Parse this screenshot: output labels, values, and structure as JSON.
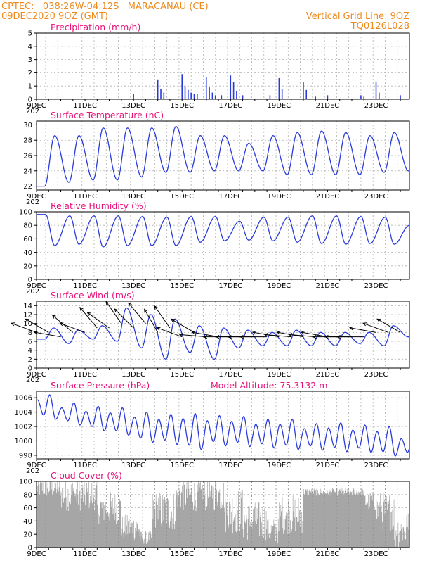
{
  "header": {
    "line1_left": "CPTEC:   038:26W-04:12S   MARACANAU (CE)",
    "line2_left": "09DEC2020 9OZ (GMT)",
    "line1_right": "Vertical Grid Line: 9OZ",
    "line2_right": "TQ0126L028"
  },
  "colors": {
    "header": "#ee8a1e",
    "title": "#e6137a",
    "series": "#2a3bdc",
    "cloud": "#a6a6a6",
    "arrow": "#000000",
    "grid": "#b0b0b0"
  },
  "x_axis": {
    "tick_labels": [
      "9DEC",
      "11DEC",
      "13DEC",
      "15DEC",
      "17DEC",
      "19DEC",
      "21DEC",
      "23DEC"
    ],
    "truncated_year_label": "202"
  },
  "chart_data": [
    {
      "id": "precipitation",
      "type": "bar",
      "title": "Precipitation (mm/h)",
      "ylim": [
        0,
        5
      ],
      "yticks": [
        0,
        1,
        2,
        3,
        4,
        5
      ],
      "grid": true,
      "x_start": "2020-12-09T00Z",
      "x_end": "2020-12-24T09Z",
      "events": [
        {
          "t": "2020-12-13T00Z",
          "v": 0.4
        },
        {
          "t": "2020-12-14T00Z",
          "v": 1.5
        },
        {
          "t": "2020-12-14T03Z",
          "v": 0.8
        },
        {
          "t": "2020-12-14T06Z",
          "v": 0.5
        },
        {
          "t": "2020-12-15T00Z",
          "v": 1.9
        },
        {
          "t": "2020-12-15T03Z",
          "v": 1.0
        },
        {
          "t": "2020-12-15T06Z",
          "v": 0.7
        },
        {
          "t": "2020-12-15T09Z",
          "v": 0.5
        },
        {
          "t": "2020-12-15T12Z",
          "v": 0.4
        },
        {
          "t": "2020-12-15T15Z",
          "v": 0.4
        },
        {
          "t": "2020-12-16T00Z",
          "v": 1.7
        },
        {
          "t": "2020-12-16T03Z",
          "v": 0.9
        },
        {
          "t": "2020-12-16T06Z",
          "v": 0.5
        },
        {
          "t": "2020-12-16T09Z",
          "v": 0.3
        },
        {
          "t": "2020-12-16T15Z",
          "v": 0.3
        },
        {
          "t": "2020-12-17T00Z",
          "v": 1.8
        },
        {
          "t": "2020-12-17T03Z",
          "v": 1.3
        },
        {
          "t": "2020-12-17T06Z",
          "v": 0.6
        },
        {
          "t": "2020-12-17T12Z",
          "v": 0.3
        },
        {
          "t": "2020-12-18T15Z",
          "v": 0.3
        },
        {
          "t": "2020-12-19T00Z",
          "v": 1.6
        },
        {
          "t": "2020-12-19T03Z",
          "v": 0.8
        },
        {
          "t": "2020-12-20T00Z",
          "v": 1.3
        },
        {
          "t": "2020-12-20T03Z",
          "v": 0.7
        },
        {
          "t": "2020-12-20T12Z",
          "v": 0.2
        },
        {
          "t": "2020-12-21T00Z",
          "v": 0.3
        },
        {
          "t": "2020-12-22T09Z",
          "v": 0.3
        },
        {
          "t": "2020-12-22T12Z",
          "v": 0.2
        },
        {
          "t": "2020-12-23T00Z",
          "v": 1.3
        },
        {
          "t": "2020-12-23T03Z",
          "v": 0.5
        },
        {
          "t": "2020-12-24T00Z",
          "v": 0.3
        }
      ]
    },
    {
      "id": "temperature",
      "type": "line",
      "title": "Surface Temperature (nC)",
      "ylim": [
        21.5,
        30.5
      ],
      "yticks": [
        22,
        24,
        26,
        28,
        30
      ],
      "grid": true,
      "x_start": "2020-12-09T00Z",
      "x_end": "2020-12-24T09Z",
      "daily": [
        {
          "day": "2020-12-09",
          "min": 22.0,
          "max": 28.6
        },
        {
          "day": "2020-12-10",
          "min": 22.5,
          "max": 28.6
        },
        {
          "day": "2020-12-11",
          "min": 22.8,
          "max": 29.6
        },
        {
          "day": "2020-12-12",
          "min": 22.8,
          "max": 29.6
        },
        {
          "day": "2020-12-13",
          "min": 23.2,
          "max": 29.6
        },
        {
          "day": "2020-12-14",
          "min": 23.8,
          "max": 29.8
        },
        {
          "day": "2020-12-15",
          "min": 23.8,
          "max": 28.6
        },
        {
          "day": "2020-12-16",
          "min": 24.0,
          "max": 28.6
        },
        {
          "day": "2020-12-17",
          "min": 24.0,
          "max": 27.6
        },
        {
          "day": "2020-12-18",
          "min": 24.0,
          "max": 28.6
        },
        {
          "day": "2020-12-19",
          "min": 23.5,
          "max": 29.0
        },
        {
          "day": "2020-12-20",
          "min": 23.5,
          "max": 29.2
        },
        {
          "day": "2020-12-21",
          "min": 23.5,
          "max": 29.0
        },
        {
          "day": "2020-12-22",
          "min": 23.5,
          "max": 28.6
        },
        {
          "day": "2020-12-23",
          "min": 23.8,
          "max": 29.0
        },
        {
          "day": "2020-12-24",
          "min": 24.0,
          "max": 25.6
        }
      ]
    },
    {
      "id": "humidity",
      "type": "line",
      "title": "Relative Humidity (%)",
      "ylim": [
        0,
        100
      ],
      "yticks": [
        0,
        20,
        40,
        60,
        80,
        100
      ],
      "grid": true,
      "x_start": "2020-12-09T00Z",
      "x_end": "2020-12-24T09Z",
      "daily": [
        {
          "day": "2020-12-09",
          "min": 50,
          "max": 96
        },
        {
          "day": "2020-12-10",
          "min": 52,
          "max": 94
        },
        {
          "day": "2020-12-11",
          "min": 48,
          "max": 94
        },
        {
          "day": "2020-12-12",
          "min": 50,
          "max": 94
        },
        {
          "day": "2020-12-13",
          "min": 50,
          "max": 93
        },
        {
          "day": "2020-12-14",
          "min": 50,
          "max": 92
        },
        {
          "day": "2020-12-15",
          "min": 55,
          "max": 93
        },
        {
          "day": "2020-12-16",
          "min": 57,
          "max": 93
        },
        {
          "day": "2020-12-17",
          "min": 58,
          "max": 86
        },
        {
          "day": "2020-12-18",
          "min": 57,
          "max": 92
        },
        {
          "day": "2020-12-19",
          "min": 55,
          "max": 92
        },
        {
          "day": "2020-12-20",
          "min": 53,
          "max": 94
        },
        {
          "day": "2020-12-21",
          "min": 52,
          "max": 94
        },
        {
          "day": "2020-12-22",
          "min": 53,
          "max": 93
        },
        {
          "day": "2020-12-23",
          "min": 52,
          "max": 92
        },
        {
          "day": "2020-12-24",
          "min": 50,
          "max": 80
        }
      ]
    },
    {
      "id": "wind",
      "type": "line",
      "title": "Surface Wind (m/s)",
      "ylim": [
        0,
        15
      ],
      "yticks": [
        0,
        2,
        4,
        6,
        8,
        10,
        12,
        14
      ],
      "grid": true,
      "x_start": "2020-12-09T00Z",
      "x_end": "2020-12-24T09Z",
      "speed_daily": [
        {
          "day": "2020-12-09",
          "min": 6.5,
          "max": 9.0
        },
        {
          "day": "2020-12-10",
          "min": 5.5,
          "max": 8.5
        },
        {
          "day": "2020-12-11",
          "min": 6.5,
          "max": 9.5
        },
        {
          "day": "2020-12-12",
          "min": 6.0,
          "max": 13.5
        },
        {
          "day": "2020-12-13",
          "min": 4.5,
          "max": 12.0
        },
        {
          "day": "2020-12-14",
          "min": 2.0,
          "max": 11.0
        },
        {
          "day": "2020-12-15",
          "min": 3.5,
          "max": 9.5
        },
        {
          "day": "2020-12-16",
          "min": 2.0,
          "max": 9.0
        },
        {
          "day": "2020-12-17",
          "min": 4.5,
          "max": 8.5
        },
        {
          "day": "2020-12-18",
          "min": 5.0,
          "max": 8.0
        },
        {
          "day": "2020-12-19",
          "min": 5.0,
          "max": 8.5
        },
        {
          "day": "2020-12-20",
          "min": 5.0,
          "max": 8.0
        },
        {
          "day": "2020-12-21",
          "min": 5.0,
          "max": 8.0
        },
        {
          "day": "2020-12-22",
          "min": 5.5,
          "max": 8.0
        },
        {
          "day": "2020-12-23",
          "min": 5.0,
          "max": 9.5
        },
        {
          "day": "2020-12-24",
          "min": 7.0,
          "max": 11.5
        }
      ],
      "vectors": [
        {
          "t": "2020-12-09T00Z",
          "speed": 8,
          "dir_from": 110
        },
        {
          "t": "2020-12-09T12Z",
          "speed": 8,
          "dir_from": 120
        },
        {
          "t": "2020-12-10T00Z",
          "speed": 7,
          "dir_from": 100
        },
        {
          "t": "2020-12-10T12Z",
          "speed": 8,
          "dir_from": 130
        },
        {
          "t": "2020-12-11T00Z",
          "speed": 8,
          "dir_from": 110
        },
        {
          "t": "2020-12-11T12Z",
          "speed": 9,
          "dir_from": 140
        },
        {
          "t": "2020-12-12T00Z",
          "speed": 9,
          "dir_from": 125
        },
        {
          "t": "2020-12-12T12Z",
          "speed": 10,
          "dir_from": 145
        },
        {
          "t": "2020-12-13T00Z",
          "speed": 9,
          "dir_from": 135
        },
        {
          "t": "2020-12-13T12Z",
          "speed": 10,
          "dir_from": 140
        },
        {
          "t": "2020-12-14T00Z",
          "speed": 8,
          "dir_from": 150
        },
        {
          "t": "2020-12-14T12Z",
          "speed": 9,
          "dir_from": 145
        },
        {
          "t": "2020-12-15T00Z",
          "speed": 7,
          "dir_from": 110
        },
        {
          "t": "2020-12-15T12Z",
          "speed": 8,
          "dir_from": 120
        },
        {
          "t": "2020-12-16T00Z",
          "speed": 7,
          "dir_from": 95
        },
        {
          "t": "2020-12-16T12Z",
          "speed": 7,
          "dir_from": 100
        },
        {
          "t": "2020-12-17T00Z",
          "speed": 7,
          "dir_from": 90
        },
        {
          "t": "2020-12-17T12Z",
          "speed": 7,
          "dir_from": 90
        },
        {
          "t": "2020-12-18T00Z",
          "speed": 7,
          "dir_from": 90
        },
        {
          "t": "2020-12-18T12Z",
          "speed": 7,
          "dir_from": 90
        },
        {
          "t": "2020-12-19T00Z",
          "speed": 7,
          "dir_from": 100
        },
        {
          "t": "2020-12-19T12Z",
          "speed": 7,
          "dir_from": 95
        },
        {
          "t": "2020-12-20T00Z",
          "speed": 7,
          "dir_from": 100
        },
        {
          "t": "2020-12-20T12Z",
          "speed": 7,
          "dir_from": 95
        },
        {
          "t": "2020-12-21T00Z",
          "speed": 7,
          "dir_from": 100
        },
        {
          "t": "2020-12-21T12Z",
          "speed": 7,
          "dir_from": 90
        },
        {
          "t": "2020-12-22T00Z",
          "speed": 7,
          "dir_from": 90
        },
        {
          "t": "2020-12-22T12Z",
          "speed": 7,
          "dir_from": 90
        },
        {
          "t": "2020-12-23T00Z",
          "speed": 8,
          "dir_from": 100
        },
        {
          "t": "2020-12-23T12Z",
          "speed": 8,
          "dir_from": 110
        },
        {
          "t": "2020-12-24T00Z",
          "speed": 8,
          "dir_from": 120
        }
      ]
    },
    {
      "id": "pressure",
      "type": "line",
      "title": "Surface Pressure (hPa)",
      "annotation": "Model Altitude: 75.3132 m",
      "ylim": [
        997.5,
        1006.9
      ],
      "yticks": [
        998,
        1000,
        1002,
        1004,
        1006
      ],
      "grid": true,
      "x_start": "2020-12-09T00Z",
      "x_end": "2020-12-24T09Z",
      "daily": [
        {
          "day": "2020-12-09",
          "min": 1003.0,
          "max": 1006.4
        },
        {
          "day": "2020-12-10",
          "min": 1002.2,
          "max": 1005.3
        },
        {
          "day": "2020-12-11",
          "min": 1001.4,
          "max": 1004.8
        },
        {
          "day": "2020-12-12",
          "min": 1000.8,
          "max": 1004.6
        },
        {
          "day": "2020-12-13",
          "min": 999.8,
          "max": 1004.0
        },
        {
          "day": "2020-12-14",
          "min": 999.5,
          "max": 1003.7
        },
        {
          "day": "2020-12-15",
          "min": 998.8,
          "max": 1003.8
        },
        {
          "day": "2020-12-16",
          "min": 999.3,
          "max": 1003.5
        },
        {
          "day": "2020-12-17",
          "min": 999.2,
          "max": 1003.4
        },
        {
          "day": "2020-12-18",
          "min": 999.0,
          "max": 1003.0
        },
        {
          "day": "2020-12-19",
          "min": 998.8,
          "max": 1003.0
        },
        {
          "day": "2020-12-20",
          "min": 998.7,
          "max": 1002.4
        },
        {
          "day": "2020-12-21",
          "min": 998.5,
          "max": 1002.5
        },
        {
          "day": "2020-12-22",
          "min": 998.4,
          "max": 1002.2
        },
        {
          "day": "2020-12-23",
          "min": 997.9,
          "max": 1002.0
        },
        {
          "day": "2020-12-24",
          "min": 997.8,
          "max": 1001.0
        }
      ]
    },
    {
      "id": "cloud",
      "type": "area",
      "title": "Cloud Cover (%)",
      "ylim": [
        0,
        100
      ],
      "yticks": [
        0,
        20,
        40,
        60,
        80,
        100
      ],
      "grid": true,
      "x_start": "2020-12-09T00Z",
      "x_end": "2020-12-24T09Z",
      "segments": [
        {
          "from": "2020-12-09T00Z",
          "to": "2020-12-10T00Z",
          "level": 90,
          "jitter": 15
        },
        {
          "from": "2020-12-10T00Z",
          "to": "2020-12-11T12Z",
          "level": 80,
          "jitter": 25
        },
        {
          "from": "2020-12-11T12Z",
          "to": "2020-12-12T12Z",
          "level": 60,
          "jitter": 25
        },
        {
          "from": "2020-12-12T12Z",
          "to": "2020-12-13T06Z",
          "level": 30,
          "jitter": 20
        },
        {
          "from": "2020-12-13T06Z",
          "to": "2020-12-13T18Z",
          "level": 15,
          "jitter": 10
        },
        {
          "from": "2020-12-13T18Z",
          "to": "2020-12-14T18Z",
          "level": 55,
          "jitter": 30
        },
        {
          "from": "2020-12-14T18Z",
          "to": "2020-12-16T18Z",
          "level": 80,
          "jitter": 25
        },
        {
          "from": "2020-12-16T18Z",
          "to": "2020-12-17T12Z",
          "level": 55,
          "jitter": 35
        },
        {
          "from": "2020-12-17T12Z",
          "to": "2020-12-18T12Z",
          "level": 40,
          "jitter": 30
        },
        {
          "from": "2020-12-18T12Z",
          "to": "2020-12-19T00Z",
          "level": 25,
          "jitter": 20
        },
        {
          "from": "2020-12-19T00Z",
          "to": "2020-12-20T00Z",
          "level": 50,
          "jitter": 30
        },
        {
          "from": "2020-12-20T00Z",
          "to": "2020-12-22T12Z",
          "level": 84,
          "jitter": 6
        },
        {
          "from": "2020-12-22T12Z",
          "to": "2020-12-23T00Z",
          "level": 70,
          "jitter": 15
        },
        {
          "from": "2020-12-23T00Z",
          "to": "2020-12-23T18Z",
          "level": 55,
          "jitter": 30
        },
        {
          "from": "2020-12-23T18Z",
          "to": "2020-12-24T09Z",
          "level": 25,
          "jitter": 30
        }
      ]
    }
  ]
}
